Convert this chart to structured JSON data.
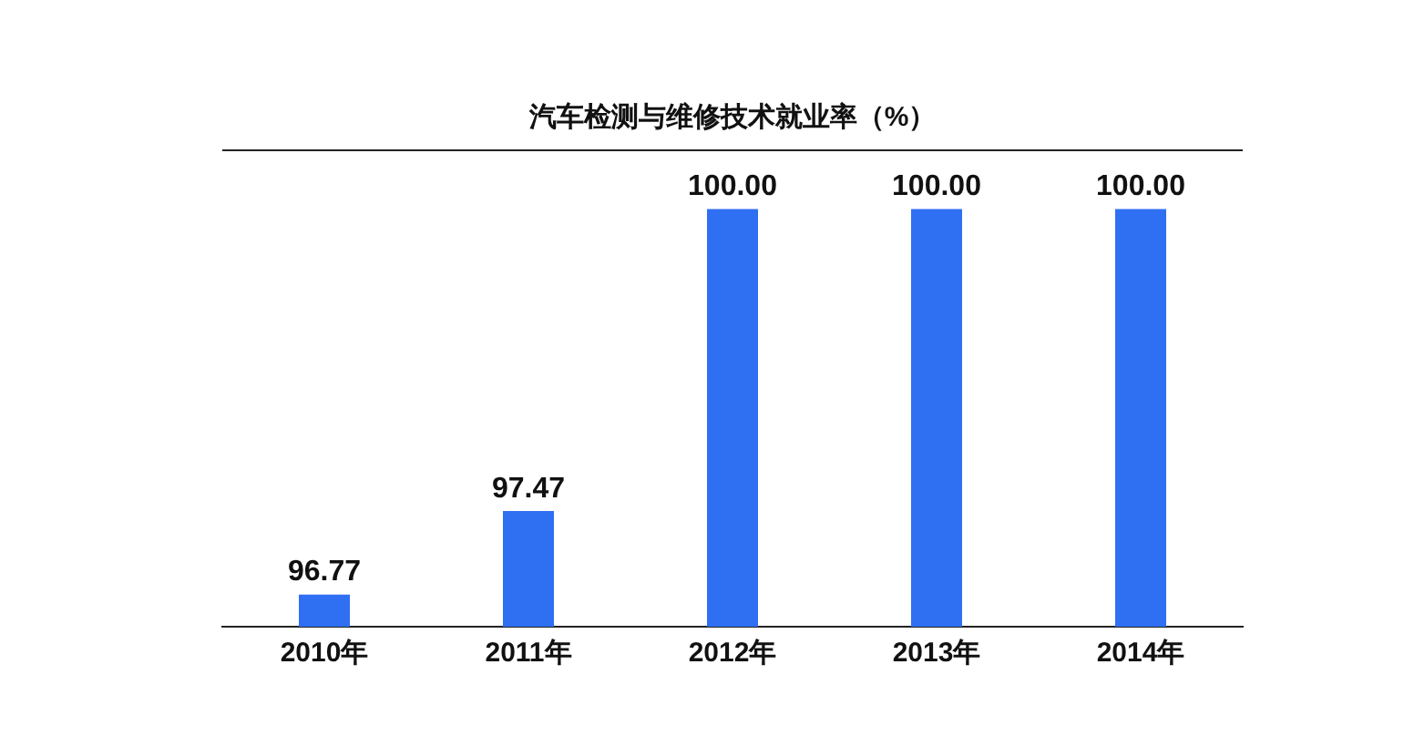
{
  "chart_data": {
    "type": "bar",
    "title": "汽车检测与维修技术就业率（%）",
    "categories": [
      "2010年",
      "2011年",
      "2012年",
      "2013年",
      "2014年"
    ],
    "values": [
      96.77,
      97.47,
      100.0,
      100.0,
      100.0
    ],
    "color": "#2f6ff2",
    "ylim": [
      96.5,
      100.5
    ],
    "tick_labels": "x",
    "value_labels": [
      "96.77",
      "97.47",
      "100.00",
      "100.00",
      "100.00"
    ],
    "grid": false,
    "legend": false
  }
}
